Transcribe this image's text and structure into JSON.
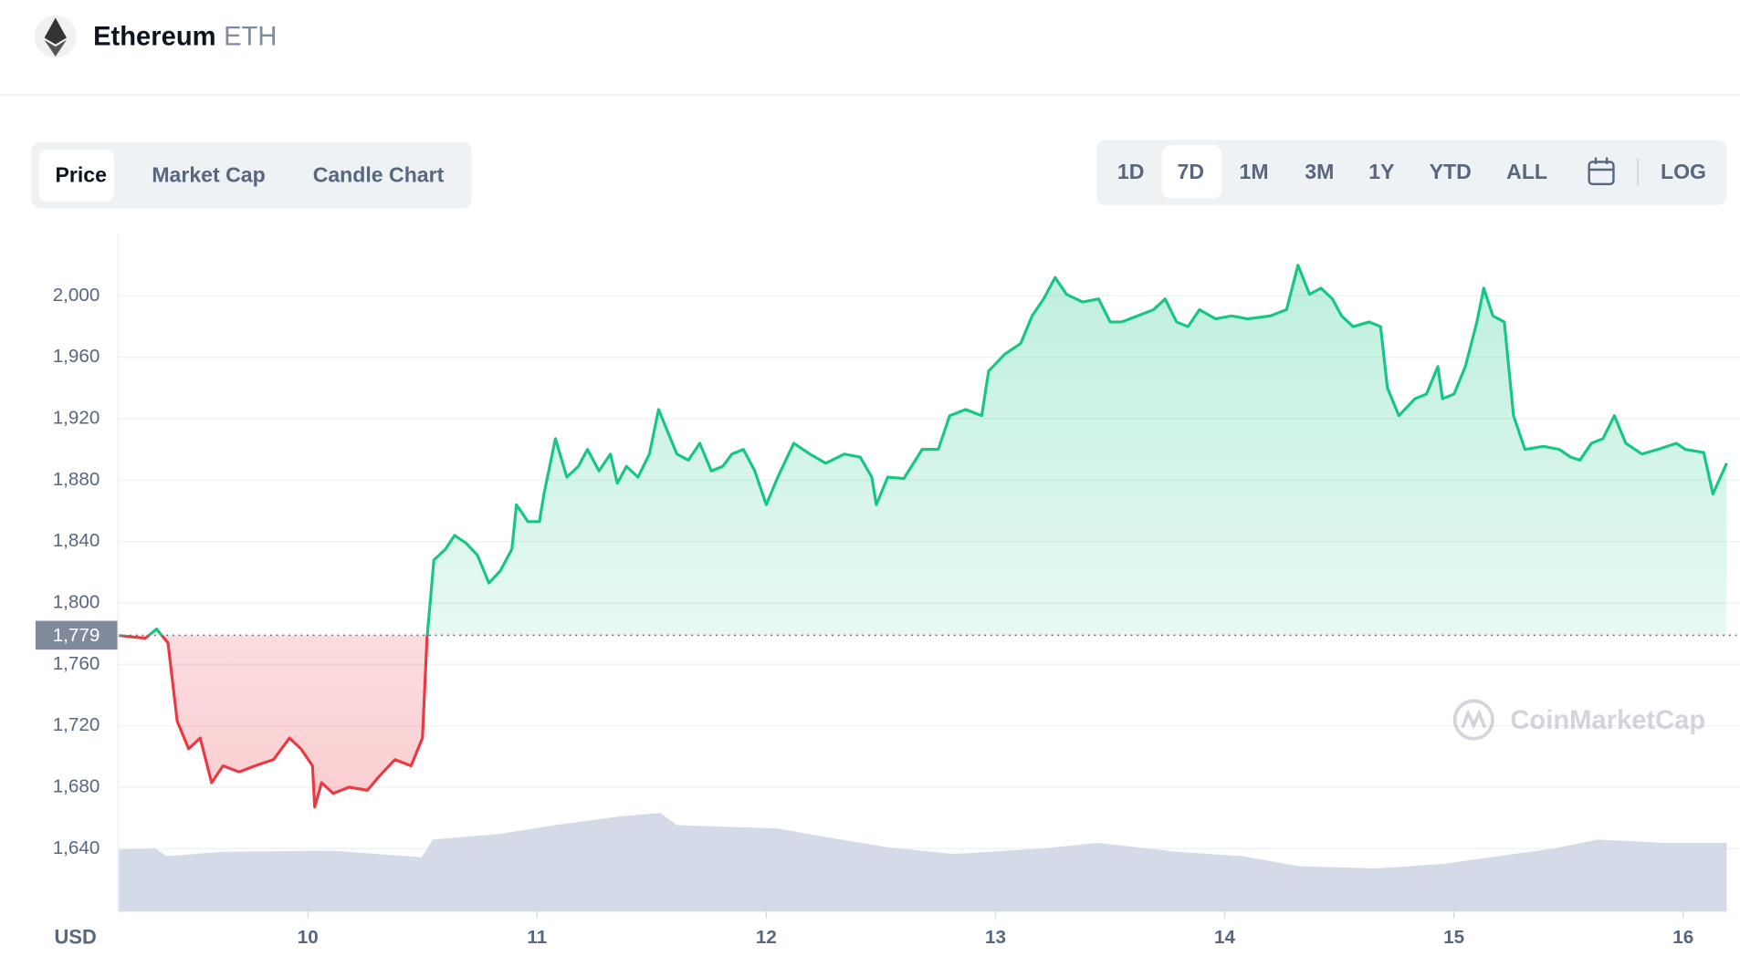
{
  "ui": {
    "title": "Ethereum",
    "symbol": "ETH",
    "tabs": [
      "Price",
      "Market Cap",
      "Candle Chart"
    ],
    "ranges": [
      "1D",
      "7D",
      "1M",
      "3M",
      "1Y",
      "YTD",
      "ALL"
    ],
    "scale_toggle": "LOG",
    "watermark": "CoinMarketCap"
  },
  "chart_data": {
    "type": "line",
    "y_label": "USD",
    "x": [
      9.17,
      9.29,
      9.34,
      9.39,
      9.43,
      9.48,
      9.53,
      9.58,
      9.63,
      9.7,
      9.77,
      9.85,
      9.92,
      9.97,
      10.02,
      10.03,
      10.06,
      10.11,
      10.18,
      10.26,
      10.31,
      10.38,
      10.45,
      10.5,
      10.52,
      10.55,
      10.6,
      10.64,
      10.69,
      10.74,
      10.79,
      10.84,
      10.89,
      10.91,
      10.96,
      11.01,
      11.03,
      11.08,
      11.13,
      11.18,
      11.22,
      11.27,
      11.32,
      11.35,
      11.39,
      11.44,
      11.49,
      11.53,
      11.56,
      11.61,
      11.66,
      11.71,
      11.76,
      11.81,
      11.85,
      11.9,
      11.95,
      12.0,
      12.05,
      12.12,
      12.19,
      12.26,
      12.34,
      12.41,
      12.46,
      12.48,
      12.53,
      12.6,
      12.68,
      12.75,
      12.8,
      12.87,
      12.94,
      12.97,
      13.04,
      13.11,
      13.16,
      13.21,
      13.26,
      13.31,
      13.38,
      13.45,
      13.5,
      13.55,
      13.62,
      13.69,
      13.74,
      13.79,
      13.84,
      13.89,
      13.96,
      14.03,
      14.1,
      14.2,
      14.27,
      14.32,
      14.37,
      14.42,
      14.47,
      14.51,
      14.56,
      14.63,
      14.68,
      14.71,
      14.76,
      14.83,
      14.88,
      14.93,
      14.95,
      15.0,
      15.05,
      15.1,
      15.13,
      15.17,
      15.22,
      15.26,
      15.31,
      15.39,
      15.46,
      15.51,
      15.55,
      15.6,
      15.65,
      15.7,
      15.75,
      15.82,
      15.89,
      15.97,
      16.01,
      16.09,
      16.13,
      16.19
    ],
    "series": [
      {
        "name": "Price",
        "color": "#16c784",
        "color_below": "#ea3943",
        "values": [
          1779,
          1777,
          1783,
          1774,
          1723,
          1705,
          1712,
          1683,
          1694,
          1690,
          1694,
          1698,
          1712,
          1705,
          1694,
          1667,
          1683,
          1676,
          1680,
          1678,
          1687,
          1698,
          1694,
          1712,
          1777,
          1828,
          1835,
          1844,
          1839,
          1831,
          1813,
          1821,
          1835,
          1864,
          1853,
          1853,
          1871,
          1907,
          1882,
          1889,
          1900,
          1886,
          1897,
          1878,
          1889,
          1882,
          1897,
          1926,
          1915,
          1897,
          1893,
          1904,
          1886,
          1889,
          1897,
          1900,
          1886,
          1864,
          1882,
          1904,
          1897,
          1891,
          1897,
          1895,
          1882,
          1864,
          1882,
          1881,
          1900,
          1900,
          1922,
          1926,
          1922,
          1951,
          1962,
          1969,
          1987,
          1998,
          2012,
          2001,
          1996,
          1998,
          1983,
          1983,
          1987,
          1991,
          1998,
          1983,
          1980,
          1991,
          1985,
          1987,
          1985,
          1987,
          1991,
          2020,
          2001,
          2005,
          1998,
          1987,
          1980,
          1983,
          1980,
          1940,
          1922,
          1933,
          1936,
          1954,
          1933,
          1936,
          1954,
          1983,
          2005,
          1987,
          1983,
          1922,
          1900,
          1902,
          1900,
          1895,
          1893,
          1904,
          1907,
          1922,
          1904,
          1897,
          1900,
          1904,
          1900,
          1898,
          1871,
          1891
        ]
      }
    ],
    "reference": {
      "value": 1779,
      "label": "1,779"
    },
    "xlim": [
      9.17,
      16.19
    ],
    "xticks": [
      10,
      11,
      12,
      13,
      14,
      15,
      16
    ],
    "ylim": [
      1599,
      2041
    ],
    "yticks": [
      {
        "value": 1640,
        "label": "1,640"
      },
      {
        "value": 1680,
        "label": "1,680"
      },
      {
        "value": 1720,
        "label": "1,720"
      },
      {
        "value": 1760,
        "label": "1,760"
      },
      {
        "value": 1800,
        "label": "1,800"
      },
      {
        "value": 1840,
        "label": "1,840"
      },
      {
        "value": 1880,
        "label": "1,880"
      },
      {
        "value": 1920,
        "label": "1,920"
      },
      {
        "value": 1960,
        "label": "1,960"
      },
      {
        "value": 2000,
        "label": "2,000"
      }
    ],
    "grid": true
  }
}
